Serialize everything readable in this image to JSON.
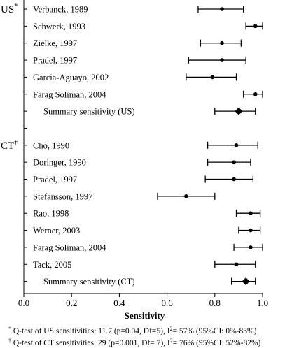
{
  "chart_data": {
    "type": "forest",
    "xlabel": "Sensitivity",
    "xlim": [
      0.0,
      1.0
    ],
    "xticks": [
      "0.0",
      "0.2",
      "0.4",
      "0.6",
      "0.8",
      "1.0"
    ],
    "groups": [
      {
        "label": "US",
        "marker": "*",
        "studies": [
          {
            "name": "Verbanck, 1989",
            "est": 0.83,
            "lo": 0.73,
            "hi": 0.92
          },
          {
            "name": "Schwerk, 1993",
            "est": 0.97,
            "lo": 0.93,
            "hi": 1.0
          },
          {
            "name": "Zielke, 1997",
            "est": 0.83,
            "lo": 0.74,
            "hi": 0.91
          },
          {
            "name": "Pradel, 1997",
            "est": 0.83,
            "lo": 0.69,
            "hi": 0.93
          },
          {
            "name": "Garcia-Aguayo, 2002",
            "est": 0.79,
            "lo": 0.68,
            "hi": 0.89
          },
          {
            "name": "Farag Soliman, 2004",
            "est": 0.97,
            "lo": 0.92,
            "hi": 1.0
          }
        ],
        "summary": {
          "name": "Summary sensitivity (US)",
          "est": 0.9,
          "lo": 0.8,
          "hi": 0.97
        }
      },
      {
        "label": "CT",
        "marker": "†",
        "studies": [
          {
            "name": "Cho, 1990",
            "est": 0.89,
            "lo": 0.77,
            "hi": 0.98
          },
          {
            "name": "Doringer, 1990",
            "est": 0.88,
            "lo": 0.77,
            "hi": 0.95
          },
          {
            "name": "Pradel, 1997",
            "est": 0.88,
            "lo": 0.76,
            "hi": 0.96
          },
          {
            "name": "Stefansson, 1997",
            "est": 0.68,
            "lo": 0.56,
            "hi": 0.8
          },
          {
            "name": "Rao, 1998",
            "est": 0.95,
            "lo": 0.89,
            "hi": 0.99
          },
          {
            "name": "Werner, 2003",
            "est": 0.95,
            "lo": 0.9,
            "hi": 0.99
          },
          {
            "name": "Farag Soliman, 2004",
            "est": 0.95,
            "lo": 0.88,
            "hi": 1.0
          },
          {
            "name": "Tack, 2005",
            "est": 0.89,
            "lo": 0.8,
            "hi": 0.97
          }
        ],
        "summary": {
          "name": "Summary sensitivity (CT)",
          "est": 0.93,
          "lo": 0.87,
          "hi": 0.97
        }
      }
    ]
  },
  "footnotes": {
    "us": {
      "marker": "*",
      "text": " Q-test of US sensitivities: 11.7 (p=0.04, Df=5), I",
      "sup": "2",
      "tail": "= 57% (95%CI: 0%-83%)"
    },
    "ct": {
      "marker": "†",
      "text": " Q-test of CT sensitivities: 29 (p=0.001, Df= 7), I",
      "sup": "2",
      "tail": "= 76% (95%CI: 52%-82%)"
    }
  }
}
